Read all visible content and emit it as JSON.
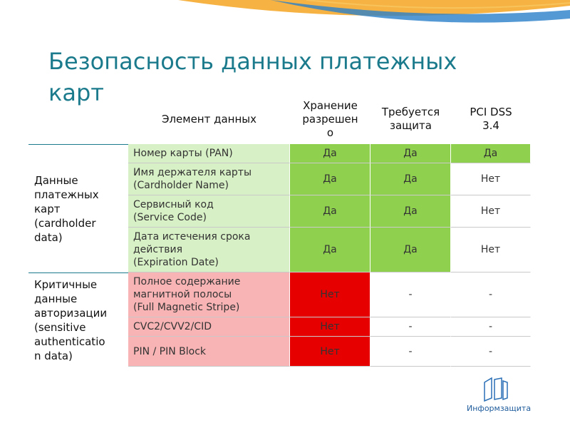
{
  "title": [
    "Безопасность данных платежных",
    "карт"
  ],
  "table": {
    "header": [
      [
        "Элемент данных"
      ],
      [
        "Хранение",
        "разрешен",
        "о"
      ],
      [
        "Требуется",
        "защита"
      ],
      [
        "PCI DSS",
        "3.4"
      ]
    ],
    "groups": [
      {
        "label": [
          "Данные",
          "платежных",
          "карт",
          "(cardholder",
          "data)"
        ],
        "rows": [
          {
            "cells": [
              [
                "Номер карты (PAN)"
              ],
              [
                "Да"
              ],
              [
                "Да"
              ],
              [
                "Да"
              ]
            ],
            "fills": [
              "#d8f0c6",
              "#8fd14f",
              "#8fd14f",
              "#8fd14f"
            ]
          },
          {
            "cells": [
              [
                "Имя держателя карты",
                "(Cardholder Name)"
              ],
              [
                "Да"
              ],
              [
                "Да"
              ],
              [
                "Нет"
              ]
            ],
            "fills": [
              "#d8f0c6",
              "#8fd14f",
              "#8fd14f",
              "#ffffff"
            ]
          },
          {
            "cells": [
              [
                "Сервисный код",
                "(Service Code)"
              ],
              [
                "Да"
              ],
              [
                "Да"
              ],
              [
                "Нет"
              ]
            ],
            "fills": [
              "#d8f0c6",
              "#8fd14f",
              "#8fd14f",
              "#ffffff"
            ]
          },
          {
            "cells": [
              [
                "Дата истечения срока",
                "действия",
                "(Expiration Date)"
              ],
              [
                "Да"
              ],
              [
                "Да"
              ],
              [
                "Нет"
              ]
            ],
            "fills": [
              "#d8f0c6",
              "#8fd14f",
              "#8fd14f",
              "#ffffff"
            ]
          }
        ]
      },
      {
        "label": [
          "Критичные",
          "данные",
          "авторизации",
          "(sensitive",
          "authenticatio",
          "n data)"
        ],
        "rows": [
          {
            "cells": [
              [
                "Полное содержание",
                "магнитной полосы",
                "(Full Magnetic Stripe)"
              ],
              [
                "Нет"
              ],
              [
                "-"
              ],
              [
                "-"
              ]
            ],
            "fills": [
              "#f8b4b4",
              "#e60000",
              "#ffffff",
              "#ffffff"
            ]
          },
          {
            "cells": [
              [
                "CVC2/CVV2/CID"
              ],
              [
                "Нет"
              ],
              [
                "-"
              ],
              [
                "-"
              ]
            ],
            "fills": [
              "#f8b4b4",
              "#e60000",
              "#ffffff",
              "#ffffff"
            ]
          },
          {
            "cells": [
              [
                "PIN / PIN Block"
              ],
              [
                "Нет"
              ],
              [
                "-"
              ],
              [
                "-"
              ]
            ],
            "fills": [
              "#f8b4b4",
              "#e60000",
              "#ffffff",
              "#ffffff"
            ]
          }
        ]
      }
    ]
  },
  "logo": "Информзащита"
}
